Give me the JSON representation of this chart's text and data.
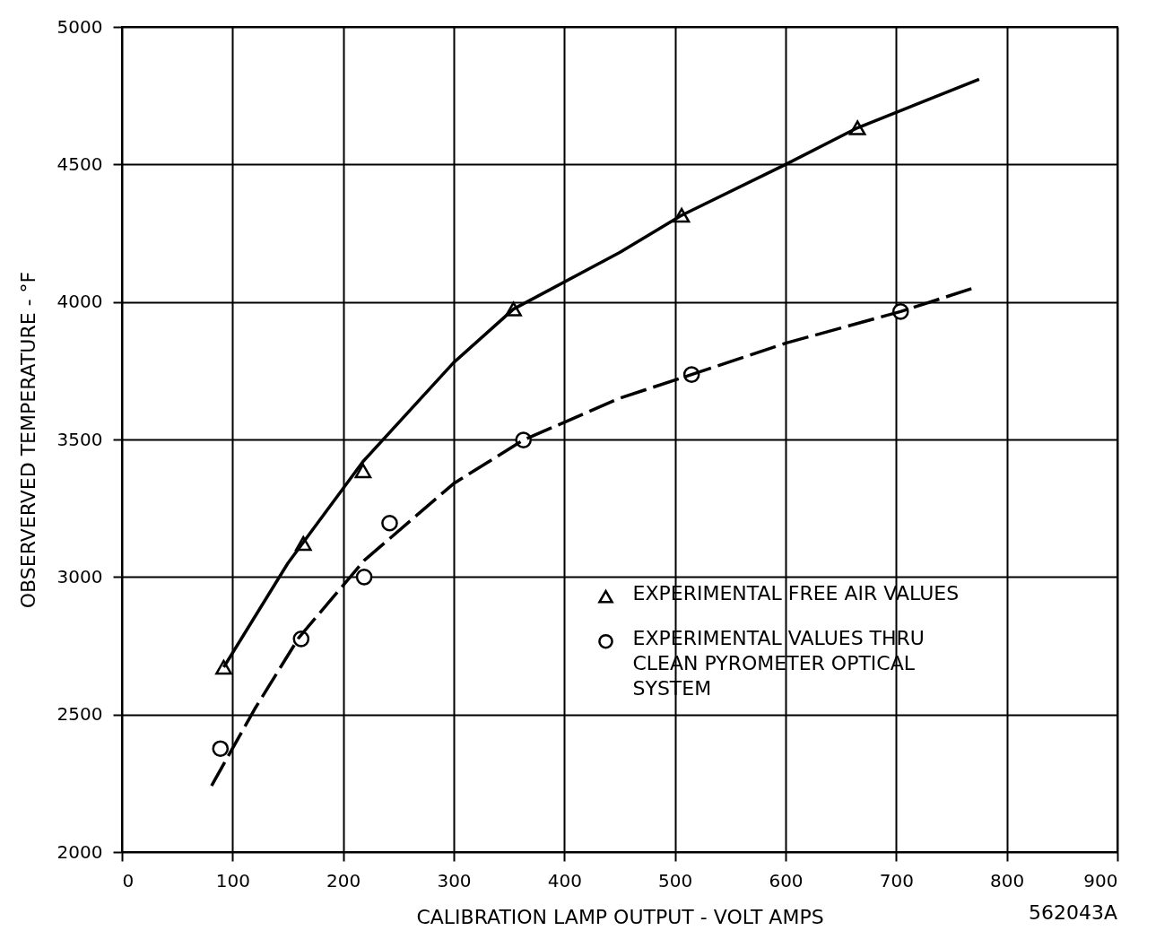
{
  "chart_data": {
    "type": "scatter",
    "xlabel": "CALIBRATION LAMP OUTPUT - VOLT AMPS",
    "ylabel": "OBSERVERVED TEMPERATURE - °F",
    "xlim": [
      0,
      900
    ],
    "xticks": [
      0,
      100,
      200,
      300,
      400,
      500,
      600,
      700,
      800,
      900
    ],
    "ylim": [
      2000,
      5000
    ],
    "yticks": [
      2000,
      2500,
      3000,
      3500,
      4000,
      4500,
      5000
    ],
    "grid": true,
    "legend": "bottom right",
    "series": [
      {
        "name": "EXPERIMENTAL FREE AIR VALUES",
        "marker": "triangle",
        "color": "#000000",
        "x": [
          92,
          164,
          218,
          354,
          506,
          665
        ],
        "values": [
          2672,
          3122,
          3386,
          3974,
          4315,
          4633
        ]
      },
      {
        "name": "EXPERIMENTAL VALUES THRU CLEAN PYROMETER OPTICAL SYSTEM",
        "marker": "circle",
        "color": "#000000",
        "x": [
          89,
          162,
          219,
          242,
          363,
          515,
          704
        ],
        "values": [
          2376,
          2775,
          3000,
          3196,
          3498,
          3736,
          3965
        ]
      },
      {
        "type": "line",
        "line_style": "solid",
        "color": "#000000",
        "x": [
          92,
          150,
          218,
          300,
          354,
          450,
          506,
          600,
          665,
          775
        ],
        "values": [
          2672,
          3050,
          3420,
          3780,
          3974,
          4180,
          4315,
          4500,
          4633,
          4810
        ]
      },
      {
        "type": "line",
        "line_style": "dashed",
        "color": "#000000",
        "x": [
          81,
          120,
          160,
          219,
          300,
          363,
          450,
          515,
          600,
          704,
          768
        ],
        "values": [
          2241,
          2520,
          2780,
          3060,
          3340,
          3498,
          3650,
          3736,
          3850,
          3965,
          4048
        ]
      }
    ],
    "annotations": [
      "562043A"
    ]
  }
}
